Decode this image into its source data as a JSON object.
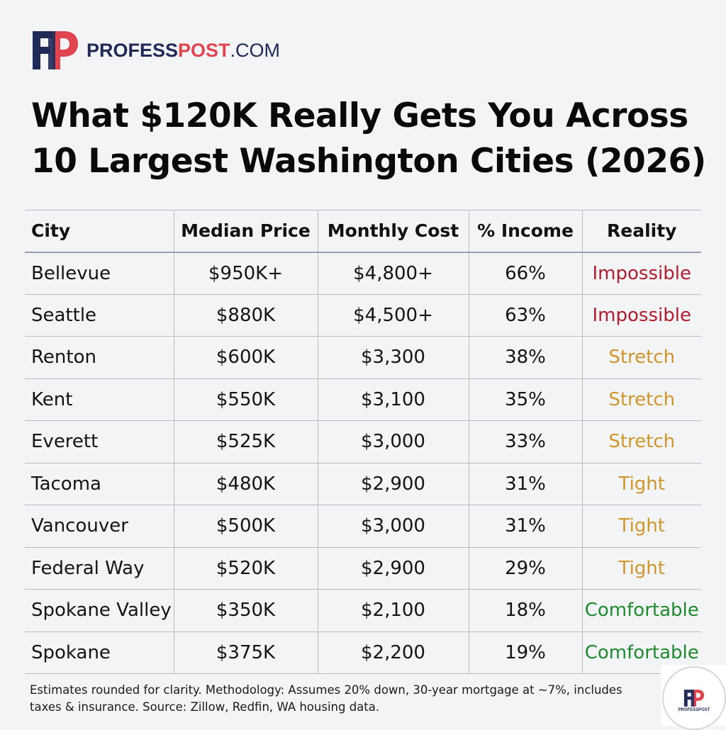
{
  "brand": {
    "logo_letters": "FP",
    "name_part1": "PROFESS",
    "name_part2": "POST",
    "name_part3": ".COM",
    "colors": {
      "navy": "#1f2a57",
      "red": "#e0454f"
    }
  },
  "title": {
    "line1": "What $120K Really Gets You Across",
    "line2": "10 Largest Washington Cities (2026)"
  },
  "table": {
    "headers": [
      "City",
      "Median Price",
      "Monthly Cost",
      "% Income",
      "Reality"
    ],
    "rows": [
      {
        "city": "Bellevue",
        "price": "$950K+",
        "monthly": "$4,800+",
        "income": "66%",
        "reality": "Impossible",
        "reality_color": "#b01e2f"
      },
      {
        "city": "Seattle",
        "price": "$880K",
        "monthly": "$4,500+",
        "income": "63%",
        "reality": "Impossible",
        "reality_color": "#b01e2f"
      },
      {
        "city": "Renton",
        "price": "$600K",
        "monthly": "$3,300",
        "income": "38%",
        "reality": "Stretch",
        "reality_color": "#d1962b"
      },
      {
        "city": "Kent",
        "price": "$550K",
        "monthly": "$3,100",
        "income": "35%",
        "reality": "Stretch",
        "reality_color": "#d1962b"
      },
      {
        "city": "Everett",
        "price": "$525K",
        "monthly": "$3,000",
        "income": "33%",
        "reality": "Stretch",
        "reality_color": "#d1962b"
      },
      {
        "city": "Tacoma",
        "price": "$480K",
        "monthly": "$2,900",
        "income": "31%",
        "reality": "Tight",
        "reality_color": "#d1962b"
      },
      {
        "city": "Vancouver",
        "price": "$500K",
        "monthly": "$3,000",
        "income": "31%",
        "reality": "Tight",
        "reality_color": "#d1962b"
      },
      {
        "city": "Federal Way",
        "price": "$520K",
        "monthly": "$2,900",
        "income": "29%",
        "reality": "Tight",
        "reality_color": "#d1962b"
      },
      {
        "city": "Spokane Valley",
        "price": "$350K",
        "monthly": "$2,100",
        "income": "18%",
        "reality": "Comfortable",
        "reality_color": "#1f8a2e"
      },
      {
        "city": "Spokane",
        "price": "$375K",
        "monthly": "$2,200",
        "income": "19%",
        "reality": "Comfortable",
        "reality_color": "#1f8a2e"
      }
    ]
  },
  "footnote": {
    "line1": "Estimates rounded for clarity. Methodology: Assumes 20% down, 30-year mortgage at ~7%, includes",
    "line2": "taxes & insurance. Source: Zillow, Redfin, WA housing data."
  },
  "badge": {
    "logo_letters": "FP",
    "text": "PROFESSPOST"
  }
}
